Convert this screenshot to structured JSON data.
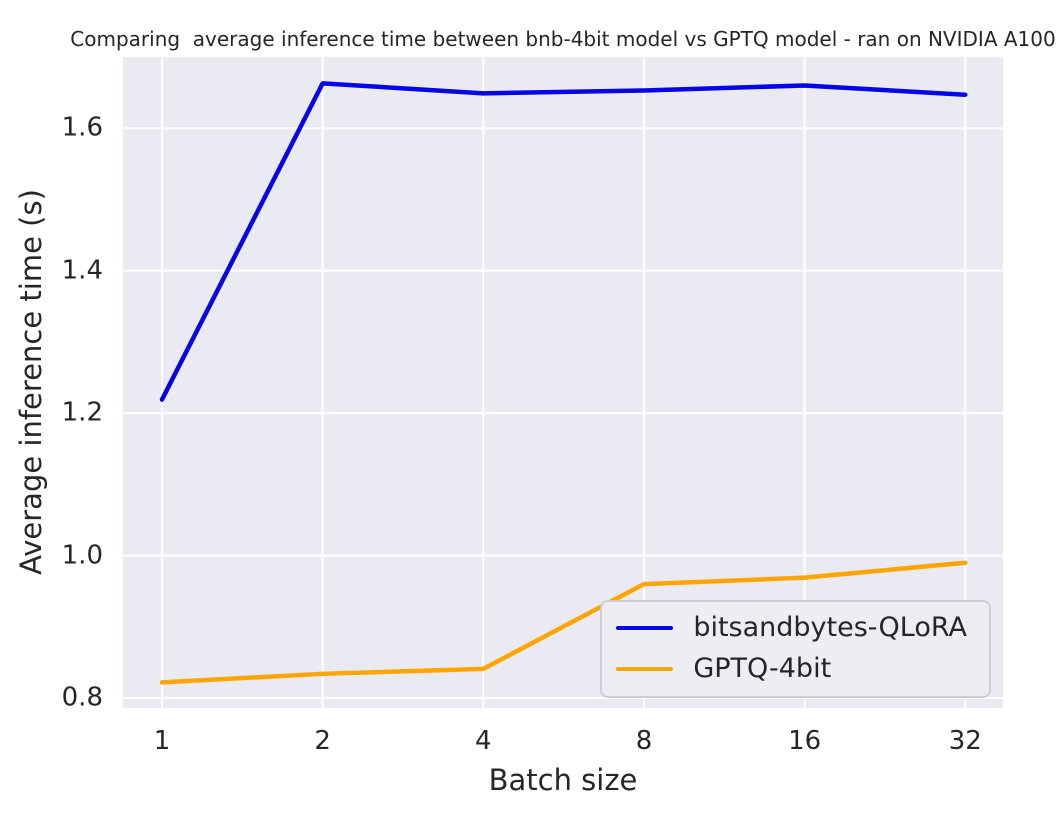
{
  "chart_data": {
    "type": "line",
    "title": "Comparing  average inference time between bnb-4bit model vs GPTQ model - ran on NVIDIA A100",
    "xlabel": "Batch size",
    "ylabel": "Average inference time (s)",
    "x_scale": "log2",
    "x": [
      1,
      2,
      4,
      8,
      16,
      32
    ],
    "x_tick_labels": [
      "1",
      "2",
      "4",
      "8",
      "16",
      "32"
    ],
    "y_ticks": [
      0.8,
      1.0,
      1.2,
      1.4,
      1.6
    ],
    "y_tick_labels": [
      "0.8",
      "1.0",
      "1.2",
      "1.4",
      "1.6"
    ],
    "ylim": [
      0.786,
      1.7
    ],
    "grid": true,
    "legend_position": "lower right",
    "colors": {
      "plot_background": "#eaeaf2",
      "figure_background": "#ffffff",
      "grid_color": "#ffffff",
      "text_color": "#262626",
      "legend_background": "#ededf4",
      "legend_border": "#ccccd4"
    },
    "series": [
      {
        "name": "bitsandbytes-QLoRA",
        "color": "#0505e8",
        "values": [
          1.219,
          1.663,
          1.649,
          1.653,
          1.66,
          1.647
        ]
      },
      {
        "name": "GPTQ-4bit",
        "color": "#ffa500",
        "values": [
          0.822,
          0.834,
          0.841,
          0.96,
          0.969,
          0.99
        ]
      }
    ]
  }
}
